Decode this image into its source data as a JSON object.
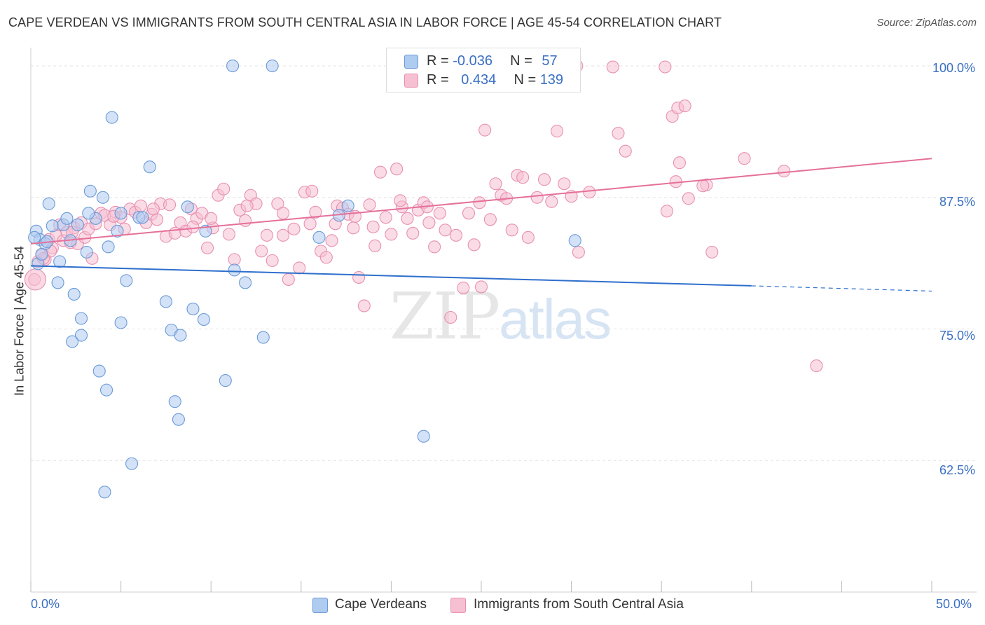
{
  "title": "CAPE VERDEAN VS IMMIGRANTS FROM SOUTH CENTRAL ASIA IN LABOR FORCE | AGE 45-54 CORRELATION CHART",
  "source": "Source: ZipAtlas.com",
  "watermark": {
    "zip": "ZIP",
    "atlas": "atlas"
  },
  "legend": {
    "row1": {
      "r_label": "R = ",
      "r_value": "-0.036",
      "n_label": "N = ",
      "n_value": "57"
    },
    "row2": {
      "r_label": "R = ",
      "r_value": "0.434",
      "n_label": "N = ",
      "n_value": "139"
    }
  },
  "colors": {
    "blue_fill": "#aecbf0",
    "blue_stroke": "#6a9ad8",
    "blue_line": "#2f6fcc",
    "pink_fill": "#f6bfd2",
    "pink_stroke": "#e890b0",
    "pink_line": "#e5709a",
    "grid": "#e3e3e3",
    "axis_text": "#3a6fc4"
  },
  "chart_data": {
    "type": "scatter",
    "title": "CAPE VERDEAN VS IMMIGRANTS FROM SOUTH CENTRAL ASIA IN LABOR FORCE | AGE 45-54 CORRELATION CHART",
    "xlabel": "",
    "ylabel": "In Labor Force | Age 45-54",
    "xlim": [
      0,
      50
    ],
    "ylim": [
      50,
      101
    ],
    "x_tick_labels": [
      "0.0%",
      "50.0%"
    ],
    "y_ticks": [
      62.5,
      75.0,
      87.5,
      100.0
    ],
    "y_tick_labels": [
      "62.5%",
      "75.0%",
      "87.5%",
      "100.0%"
    ],
    "grid": true,
    "legend_position": "top-center",
    "series": [
      {
        "name": "Cape Verdeans",
        "r": -0.036,
        "n": 57,
        "trend": {
          "x0": 0,
          "y0": 81.0,
          "x1": 40,
          "y1": 79.1,
          "dashed_to": 50,
          "dashed_y": 78.6
        },
        "points": [
          [
            0.3,
            84.3
          ],
          [
            0.5,
            83.5
          ],
          [
            0.8,
            83.1
          ],
          [
            1.0,
            86.9
          ],
          [
            1.2,
            84.8
          ],
          [
            1.6,
            81.4
          ],
          [
            1.5,
            79.4
          ],
          [
            1.8,
            84.9
          ],
          [
            2.0,
            85.5
          ],
          [
            2.2,
            83.4
          ],
          [
            2.4,
            78.3
          ],
          [
            2.6,
            84.9
          ],
          [
            2.8,
            76.0
          ],
          [
            2.8,
            74.4
          ],
          [
            2.3,
            73.8
          ],
          [
            3.1,
            82.3
          ],
          [
            3.3,
            88.1
          ],
          [
            3.6,
            85.5
          ],
          [
            4.0,
            87.5
          ],
          [
            3.2,
            86.0
          ],
          [
            4.3,
            82.8
          ],
          [
            3.8,
            71.0
          ],
          [
            4.2,
            69.2
          ],
          [
            4.5,
            95.1
          ],
          [
            4.8,
            84.3
          ],
          [
            5.0,
            86.0
          ],
          [
            5.0,
            75.6
          ],
          [
            5.3,
            79.6
          ],
          [
            5.6,
            62.2
          ],
          [
            4.1,
            59.5
          ],
          [
            6.0,
            85.6
          ],
          [
            6.2,
            85.6
          ],
          [
            6.6,
            90.4
          ],
          [
            7.5,
            77.6
          ],
          [
            7.8,
            74.9
          ],
          [
            8.0,
            68.1
          ],
          [
            8.2,
            66.4
          ],
          [
            8.3,
            74.4
          ],
          [
            8.7,
            86.6
          ],
          [
            9.0,
            76.9
          ],
          [
            9.6,
            75.9
          ],
          [
            9.7,
            84.3
          ],
          [
            10.8,
            70.1
          ],
          [
            11.3,
            80.6
          ],
          [
            11.9,
            79.4
          ],
          [
            11.2,
            100.0
          ],
          [
            13.4,
            100.0
          ],
          [
            12.9,
            74.2
          ],
          [
            16.0,
            83.7
          ],
          [
            17.1,
            85.8
          ],
          [
            17.6,
            86.7
          ],
          [
            21.8,
            64.8
          ],
          [
            30.2,
            83.4
          ],
          [
            0.4,
            81.2
          ],
          [
            0.6,
            82.1
          ],
          [
            0.2,
            83.7
          ],
          [
            0.9,
            83.3
          ]
        ]
      },
      {
        "name": "Immigrants from South Central Asia",
        "r": 0.434,
        "n": 139,
        "trend": {
          "x0": 0,
          "y0": 83.1,
          "x1": 50,
          "y1": 91.2
        },
        "points": [
          [
            0.2,
            79.7
          ],
          [
            0.4,
            81.4
          ],
          [
            0.6,
            82.0
          ],
          [
            0.8,
            81.6
          ],
          [
            1.0,
            83.5
          ],
          [
            1.2,
            82.7
          ],
          [
            1.4,
            83.9
          ],
          [
            1.6,
            84.9
          ],
          [
            1.8,
            83.4
          ],
          [
            2.0,
            84.2
          ],
          [
            2.2,
            83.2
          ],
          [
            2.4,
            84.6
          ],
          [
            2.6,
            83.1
          ],
          [
            2.8,
            85.1
          ],
          [
            3.0,
            83.7
          ],
          [
            3.2,
            84.5
          ],
          [
            3.4,
            81.7
          ],
          [
            3.6,
            85.0
          ],
          [
            3.9,
            86.0
          ],
          [
            4.1,
            85.8
          ],
          [
            4.4,
            84.9
          ],
          [
            4.7,
            86.1
          ],
          [
            5.0,
            85.6
          ],
          [
            5.2,
            84.5
          ],
          [
            5.5,
            86.4
          ],
          [
            5.8,
            86.1
          ],
          [
            6.1,
            86.7
          ],
          [
            6.4,
            85.1
          ],
          [
            6.7,
            85.9
          ],
          [
            7.0,
            85.4
          ],
          [
            7.2,
            86.9
          ],
          [
            7.5,
            83.8
          ],
          [
            7.7,
            86.8
          ],
          [
            8.0,
            84.1
          ],
          [
            8.3,
            85.1
          ],
          [
            8.6,
            84.3
          ],
          [
            8.9,
            86.4
          ],
          [
            9.2,
            85.5
          ],
          [
            9.5,
            86.0
          ],
          [
            9.8,
            82.7
          ],
          [
            10.1,
            84.6
          ],
          [
            10.4,
            87.7
          ],
          [
            10.7,
            88.3
          ],
          [
            11.0,
            84.0
          ],
          [
            11.3,
            81.6
          ],
          [
            11.6,
            86.3
          ],
          [
            11.9,
            85.3
          ],
          [
            12.2,
            87.7
          ],
          [
            12.5,
            86.9
          ],
          [
            12.8,
            82.4
          ],
          [
            13.1,
            83.9
          ],
          [
            13.4,
            81.5
          ],
          [
            13.7,
            86.9
          ],
          [
            14.0,
            86.0
          ],
          [
            14.3,
            79.7
          ],
          [
            14.6,
            84.5
          ],
          [
            14.9,
            80.8
          ],
          [
            15.2,
            88.0
          ],
          [
            15.5,
            85.0
          ],
          [
            15.8,
            86.1
          ],
          [
            16.1,
            82.4
          ],
          [
            16.4,
            81.8
          ],
          [
            16.7,
            83.4
          ],
          [
            17.0,
            86.7
          ],
          [
            17.3,
            86.5
          ],
          [
            17.6,
            85.9
          ],
          [
            17.9,
            84.6
          ],
          [
            18.2,
            79.9
          ],
          [
            18.5,
            77.2
          ],
          [
            18.8,
            86.8
          ],
          [
            19.1,
            82.9
          ],
          [
            19.4,
            89.9
          ],
          [
            19.7,
            85.6
          ],
          [
            20.0,
            84.0
          ],
          [
            20.3,
            90.2
          ],
          [
            20.6,
            86.6
          ],
          [
            20.9,
            85.5
          ],
          [
            21.2,
            84.1
          ],
          [
            21.5,
            86.3
          ],
          [
            21.8,
            87.0
          ],
          [
            22.1,
            85.1
          ],
          [
            22.4,
            82.8
          ],
          [
            22.7,
            86.0
          ],
          [
            23.0,
            84.4
          ],
          [
            23.3,
            76.1
          ],
          [
            23.6,
            83.9
          ],
          [
            24.0,
            78.9
          ],
          [
            24.3,
            86.0
          ],
          [
            24.6,
            83.0
          ],
          [
            24.9,
            87.0
          ],
          [
            25.2,
            93.9
          ],
          [
            25.5,
            85.4
          ],
          [
            25.8,
            88.8
          ],
          [
            26.1,
            87.7
          ],
          [
            26.4,
            87.4
          ],
          [
            26.7,
            84.4
          ],
          [
            27.0,
            89.6
          ],
          [
            27.3,
            89.4
          ],
          [
            27.6,
            83.7
          ],
          [
            28.1,
            87.5
          ],
          [
            28.5,
            89.2
          ],
          [
            28.9,
            87.1
          ],
          [
            29.2,
            93.8
          ],
          [
            29.6,
            88.8
          ],
          [
            30.0,
            87.6
          ],
          [
            30.4,
            82.3
          ],
          [
            31.0,
            88.0
          ],
          [
            32.3,
            99.9
          ],
          [
            32.6,
            93.6
          ],
          [
            33.0,
            91.9
          ],
          [
            35.2,
            99.9
          ],
          [
            35.6,
            95.2
          ],
          [
            35.9,
            96.0
          ],
          [
            36.3,
            96.2
          ],
          [
            36.0,
            90.8
          ],
          [
            35.3,
            86.2
          ],
          [
            35.8,
            89.0
          ],
          [
            37.5,
            88.7
          ],
          [
            37.3,
            88.6
          ],
          [
            37.8,
            82.3
          ],
          [
            39.6,
            91.2
          ],
          [
            41.8,
            90.0
          ],
          [
            43.6,
            71.5
          ],
          [
            36.5,
            87.4
          ],
          [
            30.3,
            100.0
          ],
          [
            20.5,
            87.2
          ],
          [
            19.0,
            84.7
          ],
          [
            16.9,
            85.0
          ],
          [
            15.6,
            88.1
          ],
          [
            14.0,
            83.9
          ],
          [
            9.0,
            84.7
          ],
          [
            6.8,
            86.4
          ],
          [
            4.6,
            85.7
          ],
          [
            2.3,
            84.2
          ],
          [
            1.1,
            82.4
          ],
          [
            0.7,
            81.7
          ],
          [
            25.0,
            79.0
          ],
          [
            22.0,
            86.6
          ],
          [
            18.0,
            85.7
          ],
          [
            12.0,
            86.7
          ],
          [
            10.0,
            85.5
          ]
        ]
      }
    ]
  },
  "axis": {
    "ylabel": "In Labor Force | Age 45-54",
    "x_min_label": "0.0%",
    "x_max_label": "50.0%",
    "y_labels": [
      "100.0%",
      "87.5%",
      "75.0%",
      "62.5%"
    ]
  },
  "bottom_legend": {
    "series1": "Cape Verdeans",
    "series2": "Immigrants from South Central Asia"
  }
}
